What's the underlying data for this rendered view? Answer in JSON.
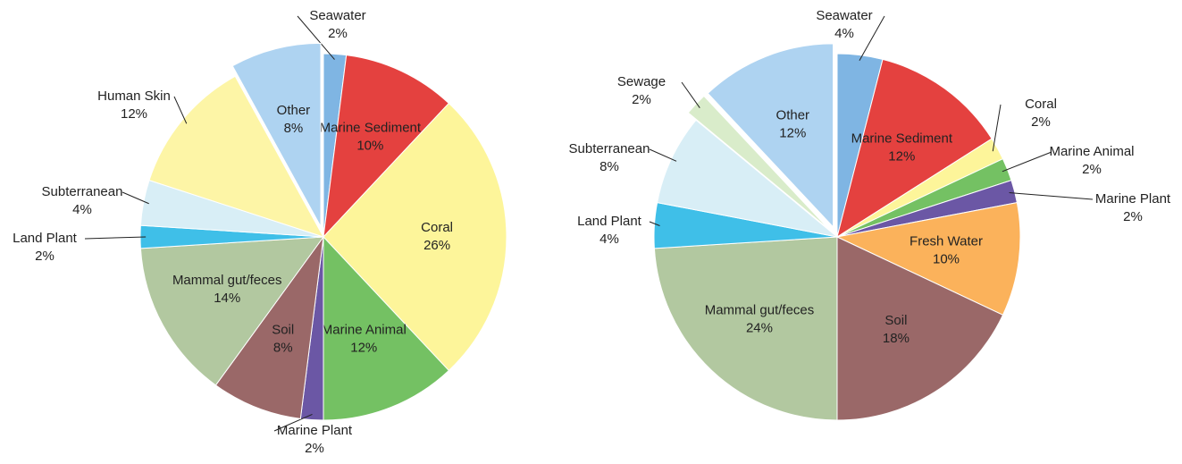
{
  "chart_data": [
    {
      "type": "pie",
      "categories": [
        "Seawater",
        "Marine Sediment",
        "Coral",
        "Marine Animal",
        "Marine Plant",
        "Soil",
        "Mammal gut/feces",
        "Land Plant",
        "Subterranean",
        "Human Skin",
        "Other"
      ],
      "values": [
        2,
        10,
        26,
        12,
        2,
        8,
        14,
        2,
        4,
        12,
        8
      ],
      "value_labels": [
        "2%",
        "10%",
        "26%",
        "12%",
        "2%",
        "8%",
        "14%",
        "2%",
        "4%",
        "12%",
        "8%"
      ],
      "colors": [
        "#7fb5e3",
        "#e4413f",
        "#fdf59a",
        "#74c163",
        "#6b57a5",
        "#9a6868",
        "#b2c8a0",
        "#3fbfe8",
        "#d8eef6",
        "#fdf5a6",
        "#aed3f1"
      ]
    },
    {
      "type": "pie",
      "categories": [
        "Seawater",
        "Marine Sediment",
        "Coral",
        "Marine Animal",
        "Marine Plant",
        "Fresh Water",
        "Soil",
        "Mammal gut/feces",
        "Land Plant",
        "Subterranean",
        "Sewage",
        "Other"
      ],
      "values": [
        4,
        12,
        2,
        2,
        2,
        10,
        18,
        24,
        4,
        8,
        2,
        12
      ],
      "value_labels": [
        "4%",
        "12%",
        "2%",
        "2%",
        "2%",
        "10%",
        "18%",
        "24%",
        "4%",
        "8%",
        "2%",
        "12%"
      ],
      "colors": [
        "#7fb5e3",
        "#e4413f",
        "#fdf59a",
        "#74c163",
        "#6b57a5",
        "#fbb25b",
        "#9a6868",
        "#b2c8a0",
        "#3fbfe8",
        "#d8eef6",
        "#d9ecca",
        "#aed3f1"
      ]
    }
  ]
}
